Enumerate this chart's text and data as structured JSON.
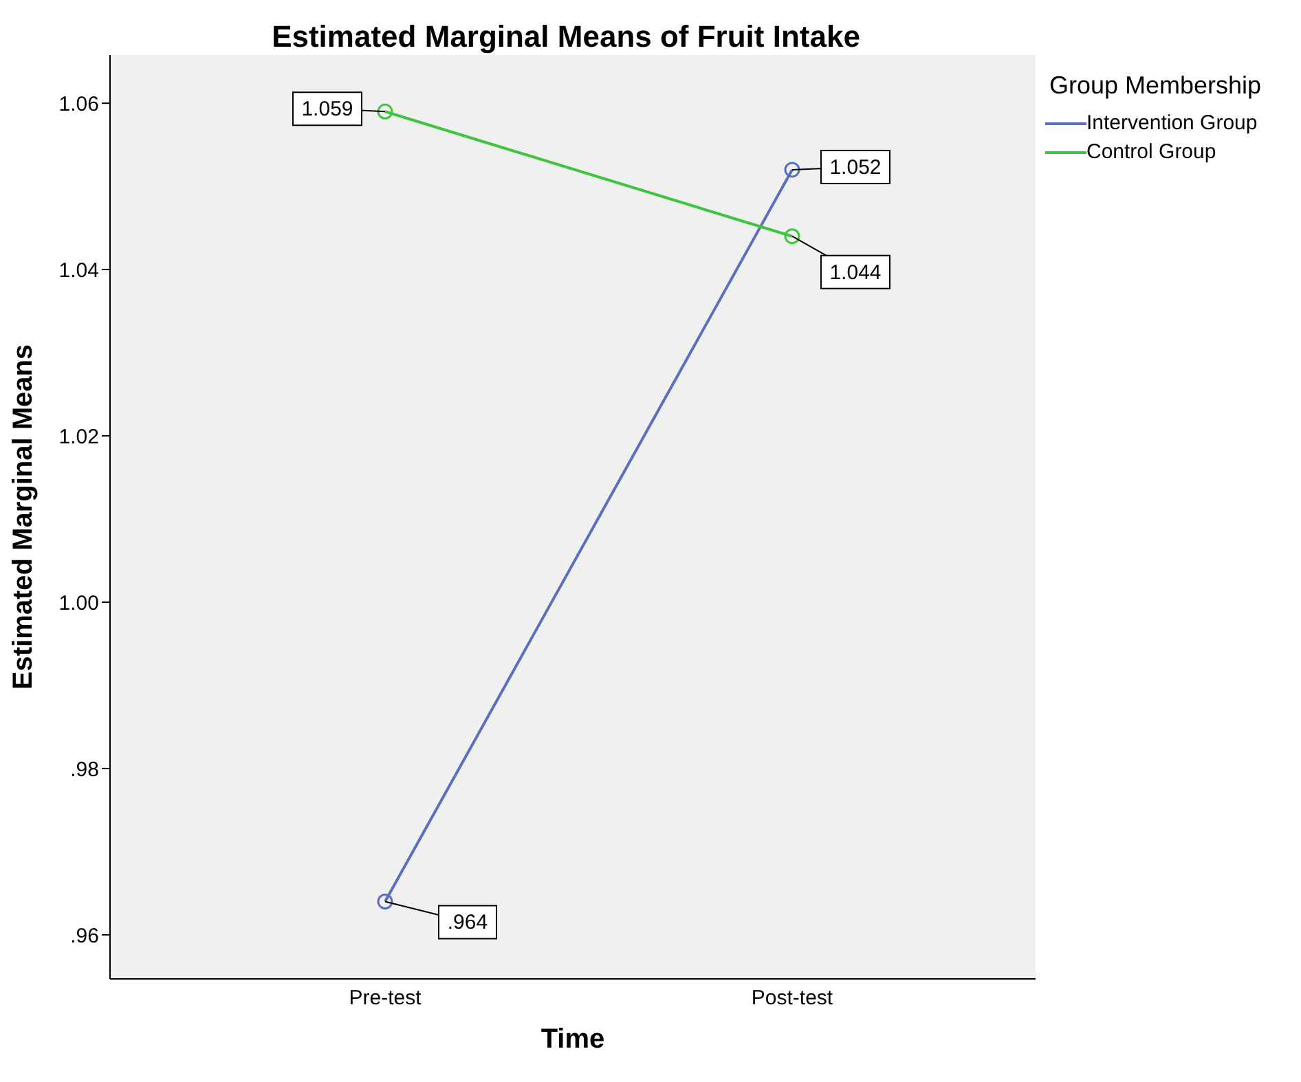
{
  "chart_data": {
    "type": "line",
    "title": "Estimated Marginal Means of Fruit Intake",
    "xlabel": "Time",
    "ylabel": "Estimated Marginal Means",
    "legend_title": "Group Membership",
    "categories": [
      "Pre-test",
      "Post-test"
    ],
    "series": [
      {
        "name": "Intervention Group",
        "color": "#5b6fbf",
        "values": [
          0.964,
          1.052
        ],
        "value_labels": [
          ".964",
          "1.052"
        ]
      },
      {
        "name": "Control Group",
        "color": "#3fc43f",
        "values": [
          1.059,
          1.044
        ],
        "value_labels": [
          "1.059",
          "1.044"
        ]
      }
    ],
    "ylim": [
      0.9547,
      1.0658
    ],
    "yticks": [
      {
        "value": 0.96,
        "label": ".96"
      },
      {
        "value": 0.98,
        "label": ".98"
      },
      {
        "value": 1.0,
        "label": "1.00"
      },
      {
        "value": 1.02,
        "label": "1.02"
      },
      {
        "value": 1.04,
        "label": "1.04"
      },
      {
        "value": 1.06,
        "label": "1.06"
      }
    ],
    "grid": false,
    "legend": "top right",
    "marker": "circle",
    "line_style": "solid"
  }
}
